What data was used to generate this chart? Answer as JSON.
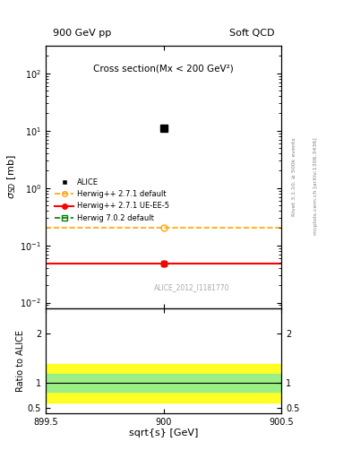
{
  "title_left": "900 GeV pp",
  "title_right": "Soft QCD",
  "plot_title": "Cross section(Mx < 200 GeV²)",
  "ylabel_main": "$\\sigma_{SD}$ [mb]",
  "ylabel_ratio": "Ratio to ALICE",
  "xlabel": "sqrt[s] [GeV]",
  "xlim": [
    899.5,
    900.5
  ],
  "ylim_main": [
    0.008,
    300
  ],
  "ylim_ratio": [
    0.4,
    2.5
  ],
  "watermark": "ALICE_2012_I1181770",
  "right_label1": "Rivet 3.1.10, ≥ 500k events",
  "right_label2": "mcplots.cern.ch [arXiv:1306.3436]",
  "alice_x": 900,
  "alice_y": 11.0,
  "herwig271_default_y": 0.2,
  "herwig271_default_marker_y": 0.2,
  "herwig271_ueee5_y": 0.048,
  "herwig271_ueee5_marker_y": 0.048,
  "herwig702_default_y": 0.048,
  "herwig702_default_marker_y": 0.048,
  "ratio_green_band_lo": 0.82,
  "ratio_green_band_hi": 1.18,
  "ratio_yellow_band_lo": 0.62,
  "ratio_yellow_band_hi": 1.38,
  "colors": {
    "alice": "#000000",
    "herwig271_default": "#ffa500",
    "herwig271_ueee5": "#ff0000",
    "herwig702_default": "#008000"
  }
}
